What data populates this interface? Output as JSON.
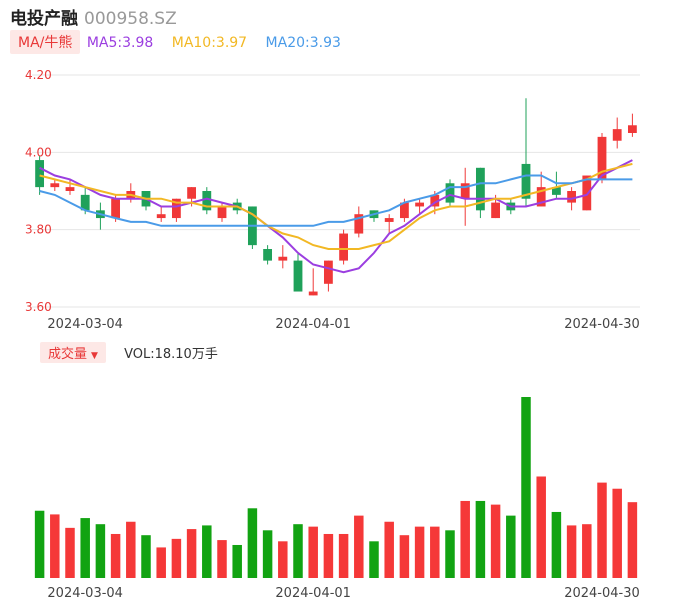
{
  "header": {
    "name": "电投产融",
    "code": "000958.SZ"
  },
  "ma": {
    "button_label": "MA/牛熊",
    "items": [
      {
        "label": "MA5:3.98",
        "color": "#9b3ee0"
      },
      {
        "label": "MA10:3.97",
        "color": "#f2b824"
      },
      {
        "label": "MA20:3.93",
        "color": "#4a9be8"
      }
    ]
  },
  "volume": {
    "button_label": "成交量",
    "text": "VOL:18.10万手"
  },
  "colors": {
    "up": "#f03838",
    "down": "#1fa15a",
    "vol_up": "#f53838",
    "vol_down": "#12a312"
  },
  "chart_data": {
    "type": "candlestick",
    "ylim": [
      3.6,
      4.2
    ],
    "y_ticks": [
      "4.20",
      "4.00",
      "3.80",
      "3.60"
    ],
    "x_ticks": [
      {
        "label": "2024-03-04",
        "index": 3
      },
      {
        "label": "2024-04-01",
        "index": 18
      },
      {
        "label": "2024-04-30",
        "index": 37
      }
    ],
    "candles": [
      {
        "o": 3.98,
        "c": 3.91,
        "h": 3.99,
        "l": 3.89,
        "v": 55
      },
      {
        "o": 3.91,
        "c": 3.92,
        "h": 3.93,
        "l": 3.9,
        "v": 52
      },
      {
        "o": 3.9,
        "c": 3.91,
        "h": 3.93,
        "l": 3.89,
        "v": 41
      },
      {
        "o": 3.89,
        "c": 3.85,
        "h": 3.91,
        "l": 3.84,
        "v": 49
      },
      {
        "o": 3.85,
        "c": 3.83,
        "h": 3.87,
        "l": 3.8,
        "v": 44
      },
      {
        "o": 3.83,
        "c": 3.88,
        "h": 3.89,
        "l": 3.82,
        "v": 36
      },
      {
        "o": 3.88,
        "c": 3.9,
        "h": 3.92,
        "l": 3.87,
        "v": 46
      },
      {
        "o": 3.9,
        "c": 3.86,
        "h": 3.9,
        "l": 3.85,
        "v": 35
      },
      {
        "o": 3.83,
        "c": 3.84,
        "h": 3.86,
        "l": 3.82,
        "v": 25
      },
      {
        "o": 3.83,
        "c": 3.88,
        "h": 3.88,
        "l": 3.82,
        "v": 32
      },
      {
        "o": 3.88,
        "c": 3.91,
        "h": 3.91,
        "l": 3.86,
        "v": 40
      },
      {
        "o": 3.9,
        "c": 3.85,
        "h": 3.91,
        "l": 3.84,
        "v": 43
      },
      {
        "o": 3.83,
        "c": 3.86,
        "h": 3.87,
        "l": 3.82,
        "v": 31
      },
      {
        "o": 3.87,
        "c": 3.85,
        "h": 3.88,
        "l": 3.84,
        "v": 27
      },
      {
        "o": 3.86,
        "c": 3.76,
        "h": 3.86,
        "l": 3.75,
        "v": 57
      },
      {
        "o": 3.75,
        "c": 3.72,
        "h": 3.76,
        "l": 3.71,
        "v": 39
      },
      {
        "o": 3.72,
        "c": 3.73,
        "h": 3.76,
        "l": 3.7,
        "v": 30
      },
      {
        "o": 3.72,
        "c": 3.64,
        "h": 3.74,
        "l": 3.64,
        "v": 44
      },
      {
        "o": 3.63,
        "c": 3.64,
        "h": 3.7,
        "l": 3.63,
        "v": 42
      },
      {
        "o": 3.66,
        "c": 3.72,
        "h": 3.72,
        "l": 3.64,
        "v": 36
      },
      {
        "o": 3.72,
        "c": 3.79,
        "h": 3.8,
        "l": 3.71,
        "v": 36
      },
      {
        "o": 3.79,
        "c": 3.84,
        "h": 3.86,
        "l": 3.78,
        "v": 51
      },
      {
        "o": 3.85,
        "c": 3.83,
        "h": 3.85,
        "l": 3.82,
        "v": 30
      },
      {
        "o": 3.82,
        "c": 3.83,
        "h": 3.84,
        "l": 3.79,
        "v": 46
      },
      {
        "o": 3.83,
        "c": 3.87,
        "h": 3.88,
        "l": 3.82,
        "v": 35
      },
      {
        "o": 3.86,
        "c": 3.87,
        "h": 3.88,
        "l": 3.84,
        "v": 42
      },
      {
        "o": 3.86,
        "c": 3.89,
        "h": 3.9,
        "l": 3.84,
        "v": 42
      },
      {
        "o": 3.92,
        "c": 3.87,
        "h": 3.93,
        "l": 3.86,
        "v": 39
      },
      {
        "o": 3.88,
        "c": 3.92,
        "h": 3.96,
        "l": 3.81,
        "v": 63
      },
      {
        "o": 3.96,
        "c": 3.85,
        "h": 3.96,
        "l": 3.83,
        "v": 63
      },
      {
        "o": 3.83,
        "c": 3.87,
        "h": 3.89,
        "l": 3.83,
        "v": 60
      },
      {
        "o": 3.87,
        "c": 3.85,
        "h": 3.88,
        "l": 3.84,
        "v": 51
      },
      {
        "o": 3.97,
        "c": 3.88,
        "h": 4.14,
        "l": 3.86,
        "v": 148
      },
      {
        "o": 3.86,
        "c": 3.91,
        "h": 3.95,
        "l": 3.86,
        "v": 83
      },
      {
        "o": 3.91,
        "c": 3.89,
        "h": 3.95,
        "l": 3.88,
        "v": 54
      },
      {
        "o": 3.87,
        "c": 3.9,
        "h": 3.91,
        "l": 3.85,
        "v": 43
      },
      {
        "o": 3.85,
        "c": 3.94,
        "h": 3.94,
        "l": 3.85,
        "v": 44
      },
      {
        "o": 3.93,
        "c": 4.04,
        "h": 4.05,
        "l": 3.92,
        "v": 78
      },
      {
        "o": 4.03,
        "c": 4.06,
        "h": 4.09,
        "l": 4.01,
        "v": 73
      },
      {
        "o": 4.05,
        "c": 4.07,
        "h": 4.1,
        "l": 4.04,
        "v": 62
      }
    ],
    "ma5": [
      3.96,
      3.94,
      3.93,
      3.91,
      3.89,
      3.88,
      3.88,
      3.88,
      3.86,
      3.86,
      3.87,
      3.88,
      3.87,
      3.86,
      3.84,
      3.81,
      3.78,
      3.74,
      3.71,
      3.7,
      3.69,
      3.7,
      3.74,
      3.79,
      3.81,
      3.84,
      3.87,
      3.89,
      3.88,
      3.88,
      3.88,
      3.86,
      3.86,
      3.87,
      3.88,
      3.88,
      3.89,
      3.94,
      3.96,
      3.98
    ],
    "ma10": [
      3.94,
      3.93,
      3.92,
      3.91,
      3.9,
      3.89,
      3.89,
      3.88,
      3.88,
      3.87,
      3.87,
      3.86,
      3.86,
      3.86,
      3.84,
      3.81,
      3.79,
      3.78,
      3.76,
      3.75,
      3.75,
      3.75,
      3.76,
      3.77,
      3.8,
      3.83,
      3.85,
      3.86,
      3.86,
      3.87,
      3.88,
      3.88,
      3.89,
      3.9,
      3.91,
      3.92,
      3.93,
      3.95,
      3.96,
      3.97
    ],
    "ma20": [
      3.9,
      3.89,
      3.87,
      3.85,
      3.84,
      3.83,
      3.82,
      3.82,
      3.81,
      3.81,
      3.81,
      3.81,
      3.81,
      3.81,
      3.81,
      3.81,
      3.81,
      3.81,
      3.81,
      3.82,
      3.82,
      3.83,
      3.84,
      3.85,
      3.87,
      3.88,
      3.89,
      3.91,
      3.91,
      3.92,
      3.92,
      3.93,
      3.94,
      3.94,
      3.92,
      3.92,
      3.93,
      3.93,
      3.93,
      3.93
    ]
  }
}
